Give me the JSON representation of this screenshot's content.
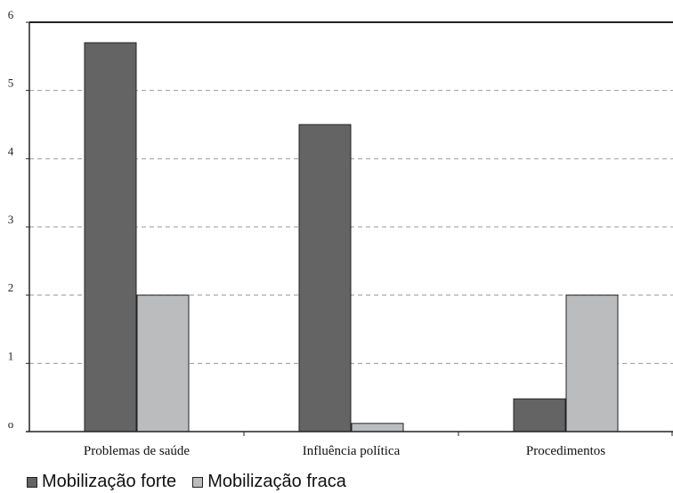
{
  "chart_data": {
    "type": "bar",
    "title": "",
    "xlabel": "",
    "ylabel": "",
    "categories": [
      "Problemas de saúde",
      "Influência política",
      "Procedimentos"
    ],
    "series": [
      {
        "name": "Mobilização forte",
        "values": [
          5.7,
          4.5,
          0.48
        ],
        "color": "#646464"
      },
      {
        "name": "Mobilização fraca",
        "values": [
          2.0,
          0.12,
          2.0
        ],
        "color": "#bbbcbe"
      }
    ],
    "ylim": [
      0,
      6
    ],
    "yticks": [
      "o",
      "1",
      "2",
      "3",
      "4",
      "5",
      "6"
    ],
    "grid": true,
    "grid_style": "dashed",
    "legend_position": "bottom-left"
  }
}
